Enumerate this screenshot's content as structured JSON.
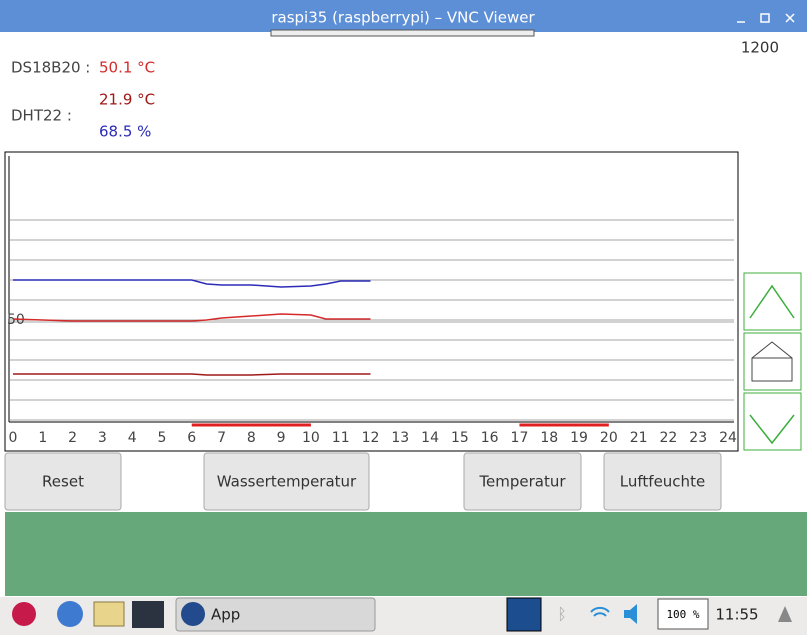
{
  "window": {
    "title": "raspi35 (raspberrypi) – VNC Viewer"
  },
  "counter": "1200",
  "readings": {
    "ds18b20_label": "DS18B20 :",
    "ds18b20_value": "50.1 °C",
    "dht22_label": "DHT22 :",
    "dht22_temp": "21.9 °C",
    "dht22_humidity": "68.5 %"
  },
  "chart_data": {
    "type": "line",
    "xlim": [
      0,
      24
    ],
    "xticks": [
      0,
      1,
      2,
      3,
      4,
      5,
      6,
      7,
      8,
      9,
      10,
      11,
      12,
      13,
      14,
      15,
      16,
      17,
      18,
      19,
      20,
      21,
      22,
      23,
      24
    ],
    "ylim": [
      0,
      135
    ],
    "yticks": [
      50
    ],
    "series": [
      {
        "color": "#2b2bb8",
        "x": [
          0,
          2,
          4,
          6,
          6.5,
          7,
          8,
          9,
          10,
          10.5,
          11,
          12
        ],
        "values": [
          71,
          71,
          71,
          71,
          69,
          68.5,
          68.5,
          67.5,
          68,
          69,
          70.5,
          70.5
        ]
      },
      {
        "color": "#d42a2a",
        "x": [
          0,
          2,
          4,
          6,
          6.5,
          7,
          8,
          9,
          10,
          10.5,
          12
        ],
        "values": [
          51.5,
          50.5,
          50.5,
          50.5,
          51,
          52,
          53,
          54,
          53.5,
          51.5,
          51.5
        ]
      },
      {
        "color": "#a01818",
        "x": [
          0,
          2,
          4,
          6,
          6.5,
          7,
          8,
          9,
          10,
          12
        ],
        "values": [
          24,
          24,
          24,
          24,
          23.5,
          23.5,
          23.5,
          24,
          24,
          24
        ]
      }
    ],
    "highlights": [
      [
        6,
        10
      ],
      [
        17,
        20
      ]
    ]
  },
  "buttons": [
    "Reset",
    "Wassertemperatur",
    "Temperatur",
    "Luftfeuchte"
  ],
  "taskbar": {
    "app": "App",
    "cpu": "100 %",
    "clock": "11:55"
  }
}
